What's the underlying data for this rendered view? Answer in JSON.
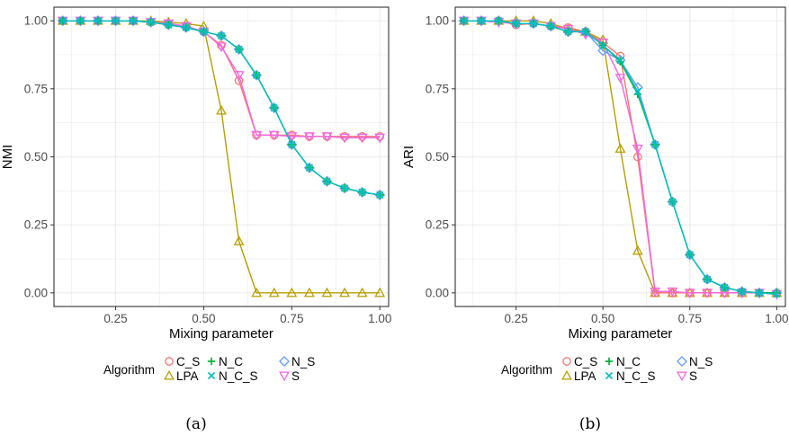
{
  "colors": {
    "C_S": "#F8766D",
    "LPA": "#B79F00",
    "N_C": "#00BA38",
    "N_C_S": "#00BFC4",
    "N_S": "#619CFF",
    "S": "#F564E3",
    "panel_border": "#333333",
    "grid": "#EBEBEB",
    "axis_text": "#4D4D4D"
  },
  "legend": {
    "title": "Algorithm",
    "entries": [
      {
        "key": "C_S",
        "label": "C_S",
        "shape": "circle"
      },
      {
        "key": "LPA",
        "label": "LPA",
        "shape": "triangle"
      },
      {
        "key": "N_C",
        "label": "N_C",
        "shape": "plus"
      },
      {
        "key": "N_C_S",
        "label": "N_C_S",
        "shape": "cross"
      },
      {
        "key": "N_S",
        "label": "N_S",
        "shape": "diamond"
      },
      {
        "key": "S",
        "label": "S",
        "shape": "triangle-down"
      }
    ]
  },
  "chart_data": [
    {
      "type": "line",
      "caption": "(a)",
      "xlabel": "Mixing parameter",
      "ylabel": "NMI",
      "xlim": [
        0.075,
        1.025
      ],
      "ylim": [
        -0.05,
        1.05
      ],
      "xticks": [
        0.25,
        0.5,
        0.75,
        1.0
      ],
      "xtick_labels": [
        "0.25",
        "0.50",
        "0.75",
        "1.00"
      ],
      "yticks": [
        0.0,
        0.25,
        0.5,
        0.75,
        1.0
      ],
      "ytick_labels": [
        "0.00",
        "0.25",
        "0.50",
        "0.75",
        "1.00"
      ],
      "grid": true,
      "x": [
        0.1,
        0.15,
        0.2,
        0.25,
        0.3,
        0.35,
        0.4,
        0.45,
        0.5,
        0.55,
        0.6,
        0.65,
        0.7,
        0.75,
        0.8,
        0.85,
        0.9,
        0.95,
        1.0
      ],
      "series": [
        {
          "key": "C_S",
          "values": [
            1.0,
            1.0,
            1.0,
            1.0,
            1.0,
            0.995,
            0.99,
            0.98,
            0.96,
            0.91,
            0.78,
            0.58,
            0.58,
            0.58,
            0.575,
            0.575,
            0.575,
            0.575,
            0.575
          ]
        },
        {
          "key": "LPA",
          "values": [
            1.0,
            1.0,
            1.0,
            1.0,
            1.0,
            1.0,
            0.995,
            0.99,
            0.98,
            0.67,
            0.19,
            0.0,
            0.0,
            0.0,
            0.0,
            0.0,
            0.0,
            0.0,
            0.0
          ]
        },
        {
          "key": "N_C",
          "values": [
            1.0,
            1.0,
            1.0,
            1.0,
            1.0,
            0.995,
            0.985,
            0.975,
            0.96,
            0.945,
            0.895,
            0.8,
            0.68,
            0.545,
            0.46,
            0.41,
            0.385,
            0.37,
            0.36
          ]
        },
        {
          "key": "N_C_S",
          "values": [
            1.0,
            1.0,
            1.0,
            1.0,
            1.0,
            0.995,
            0.985,
            0.975,
            0.96,
            0.945,
            0.895,
            0.8,
            0.68,
            0.545,
            0.46,
            0.41,
            0.385,
            0.37,
            0.36
          ]
        },
        {
          "key": "N_S",
          "values": [
            1.0,
            1.0,
            1.0,
            1.0,
            1.0,
            0.995,
            0.985,
            0.975,
            0.96,
            0.945,
            0.895,
            0.8,
            0.68,
            0.545,
            0.46,
            0.41,
            0.385,
            0.37,
            0.36
          ]
        },
        {
          "key": "S",
          "values": [
            1.0,
            1.0,
            1.0,
            1.0,
            1.0,
            0.995,
            0.99,
            0.98,
            0.96,
            0.905,
            0.8,
            0.58,
            0.58,
            0.575,
            0.575,
            0.575,
            0.57,
            0.57,
            0.57
          ]
        }
      ]
    },
    {
      "type": "line",
      "caption": "(b)",
      "xlabel": "Mixing parameter",
      "ylabel": "ARI",
      "xlim": [
        0.075,
        1.025
      ],
      "ylim": [
        -0.05,
        1.05
      ],
      "xticks": [
        0.25,
        0.5,
        0.75,
        1.0
      ],
      "xtick_labels": [
        "0.25",
        "0.50",
        "0.75",
        "1.00"
      ],
      "yticks": [
        0.0,
        0.25,
        0.5,
        0.75,
        1.0
      ],
      "ytick_labels": [
        "0.00",
        "0.25",
        "0.50",
        "0.75",
        "1.00"
      ],
      "grid": true,
      "x": [
        0.1,
        0.15,
        0.2,
        0.25,
        0.3,
        0.35,
        0.4,
        0.45,
        0.5,
        0.55,
        0.6,
        0.65,
        0.7,
        0.75,
        0.8,
        0.85,
        0.9,
        0.95,
        1.0
      ],
      "series": [
        {
          "key": "C_S",
          "values": [
            1.0,
            1.0,
            1.0,
            0.985,
            0.99,
            0.98,
            0.975,
            0.96,
            0.92,
            0.87,
            0.5,
            0.0,
            0.0,
            0.0,
            0.0,
            0.0,
            0.0,
            0.0,
            0.0
          ]
        },
        {
          "key": "LPA",
          "values": [
            1.0,
            1.0,
            1.0,
            1.0,
            1.0,
            0.99,
            0.97,
            0.96,
            0.93,
            0.53,
            0.155,
            0.0,
            0.0,
            0.0,
            0.0,
            0.0,
            0.0,
            0.0,
            0.0
          ]
        },
        {
          "key": "N_C",
          "values": [
            1.0,
            1.0,
            1.0,
            0.99,
            0.99,
            0.98,
            0.96,
            0.96,
            0.91,
            0.85,
            0.73,
            0.545,
            0.335,
            0.14,
            0.05,
            0.02,
            0.005,
            0.0,
            0.0
          ]
        },
        {
          "key": "N_C_S",
          "values": [
            1.0,
            1.0,
            1.0,
            0.99,
            0.99,
            0.98,
            0.96,
            0.96,
            0.91,
            0.855,
            0.74,
            0.545,
            0.335,
            0.14,
            0.05,
            0.02,
            0.005,
            0.0,
            -0.005
          ]
        },
        {
          "key": "N_S",
          "values": [
            1.0,
            1.0,
            1.0,
            0.99,
            0.99,
            0.98,
            0.96,
            0.96,
            0.89,
            0.855,
            0.755,
            0.545,
            0.335,
            0.14,
            0.05,
            0.02,
            0.005,
            0.0,
            0.0
          ]
        },
        {
          "key": "S",
          "values": [
            1.0,
            1.0,
            0.995,
            0.99,
            0.99,
            0.98,
            0.97,
            0.95,
            0.92,
            0.79,
            0.53,
            0.005,
            0.005,
            0.0,
            0.0,
            0.0,
            0.0,
            0.0,
            -0.005
          ]
        }
      ]
    }
  ]
}
